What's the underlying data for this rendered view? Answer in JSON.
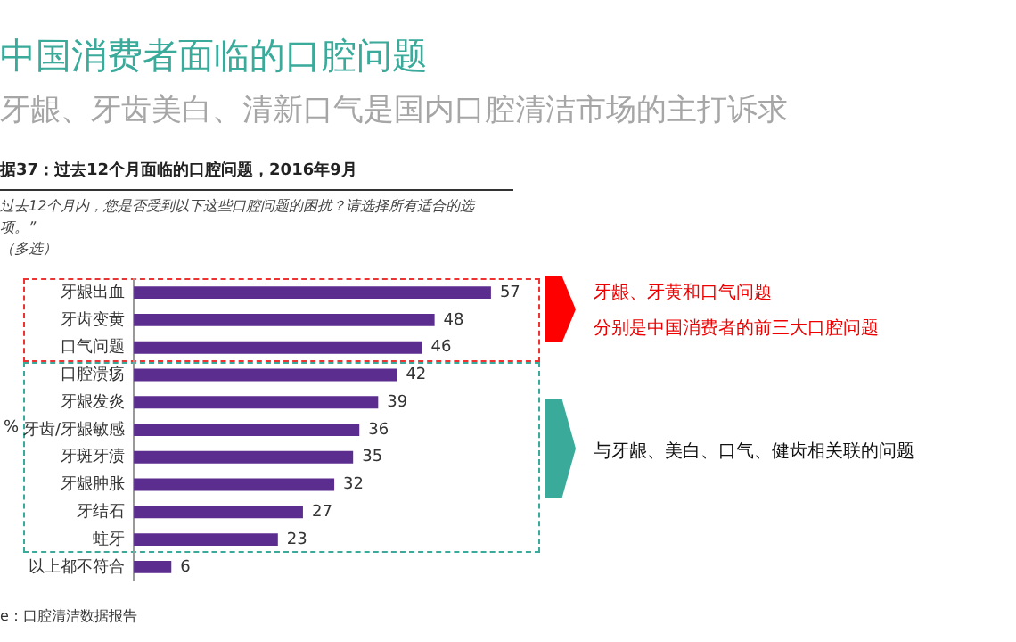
{
  "chart_data": {
    "type": "bar",
    "orientation": "horizontal",
    "title": "中国消费者面临的口腔问题",
    "subtitle": "牙龈、牙齿美白、清新口气是国内口腔清洁市场的主打诉求",
    "ylabel": "%",
    "categories": [
      "牙龈出血",
      "牙齿变黄",
      "口气问题",
      "口腔溃疡",
      "牙龈发炎",
      "牙齿/牙龈敏感",
      "牙斑牙渍",
      "牙龈肿胀",
      "牙结石",
      "蛀牙",
      "以上都不符合"
    ],
    "values": [
      57,
      48,
      46,
      42,
      39,
      36,
      35,
      32,
      27,
      23,
      6
    ],
    "color": "#5b2d8e",
    "data_labels": true,
    "legend": false,
    "tick_labels": "y",
    "annotations": [
      "据37：过去12个月面临的口腔问题，2016年9月",
      "过去12个月内，您是否受到以下这些口腔问题的困扰？请选择所有适合的选项。”",
      "（多选）",
      "牙龈、牙黄和口气问题",
      "分别是中国消费者的前三大口腔问题",
      "与牙龈、美白、口气、健齿相关联的问题",
      "e：口腔清洁数据报告"
    ]
  }
}
